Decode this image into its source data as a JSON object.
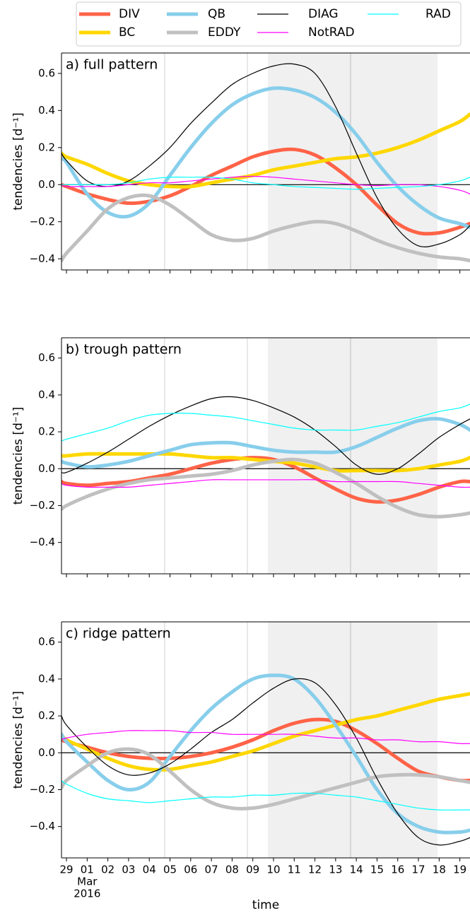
{
  "chart_data": [
    {
      "type": "line",
      "title": "a) full pattern",
      "y_label": "tendencies [d⁻¹]",
      "x": [
        -0.24,
        0,
        1,
        2,
        3,
        4,
        5,
        6,
        7,
        8,
        9,
        10,
        11,
        12,
        13,
        14,
        15,
        16,
        17,
        18,
        19,
        19.49
      ],
      "xlim": [
        -0.24,
        19.49
      ],
      "xticks": [
        0,
        1,
        2,
        3,
        4,
        5,
        6,
        7,
        8,
        9,
        10,
        11,
        12,
        13,
        14,
        15,
        16,
        17,
        18,
        19
      ],
      "ylim": [
        -0.46,
        0.71
      ],
      "yticks": [
        {
          "value": -0.4,
          "label": "−0.4"
        },
        {
          "value": -0.2,
          "label": "−0.2"
        },
        {
          "value": 0,
          "label": "0.0"
        },
        0.2,
        0.4,
        0.6
      ],
      "hlines": [
        0
      ],
      "shaded_span": [
        9.73,
        17.92
      ],
      "vlines": [
        4.74,
        8.74,
        13.72
      ],
      "series": [
        {
          "name": "DIV",
          "color": "#ff6347",
          "linewidth": 5,
          "values": [
            0.0,
            -0.01,
            -0.05,
            -0.08,
            -0.1,
            -0.09,
            -0.06,
            -0.01,
            0.05,
            0.1,
            0.15,
            0.18,
            0.19,
            0.16,
            0.09,
            0.0,
            -0.11,
            -0.21,
            -0.26,
            -0.26,
            -0.23,
            -0.21
          ]
        },
        {
          "name": "BC",
          "color": "#ffd700",
          "linewidth": 5,
          "values": [
            0.17,
            0.15,
            0.11,
            0.06,
            0.02,
            0.0,
            -0.01,
            -0.01,
            0.01,
            0.03,
            0.05,
            0.08,
            0.1,
            0.12,
            0.14,
            0.15,
            0.17,
            0.2,
            0.24,
            0.29,
            0.34,
            0.38
          ]
        },
        {
          "name": "QB",
          "color": "#87ceeb",
          "linewidth": 5,
          "values": [
            0.14,
            0.12,
            -0.05,
            -0.15,
            -0.17,
            -0.1,
            0.05,
            0.2,
            0.33,
            0.43,
            0.49,
            0.52,
            0.51,
            0.47,
            0.39,
            0.27,
            0.12,
            -0.01,
            -0.11,
            -0.18,
            -0.21,
            -0.23
          ]
        },
        {
          "name": "EDDY",
          "color": "#c0c0c0",
          "linewidth": 5,
          "values": [
            -0.41,
            -0.37,
            -0.25,
            -0.13,
            -0.07,
            -0.06,
            -0.11,
            -0.19,
            -0.27,
            -0.3,
            -0.29,
            -0.25,
            -0.22,
            -0.2,
            -0.21,
            -0.25,
            -0.3,
            -0.34,
            -0.37,
            -0.39,
            -0.4,
            -0.41
          ]
        },
        {
          "name": "DIAG",
          "color": "#000000",
          "linewidth": 1.2,
          "values": [
            0.17,
            0.13,
            0.02,
            -0.01,
            0.02,
            0.1,
            0.2,
            0.33,
            0.44,
            0.54,
            0.6,
            0.64,
            0.65,
            0.6,
            0.42,
            0.17,
            -0.07,
            -0.24,
            -0.33,
            -0.32,
            -0.27,
            -0.22
          ]
        },
        {
          "name": "NotRAD",
          "color": "#ff00ff",
          "linewidth": 1.2,
          "values": [
            0.0,
            -0.01,
            -0.01,
            -0.01,
            0.0,
            0.01,
            0.01,
            0.02,
            0.03,
            0.04,
            0.045,
            0.04,
            0.03,
            0.02,
            0.01,
            0.0,
            -0.005,
            0.0,
            0.0,
            -0.01,
            -0.03,
            -0.05
          ]
        },
        {
          "name": "RAD",
          "color": "#00ffff",
          "linewidth": 1.2,
          "values": [
            0.0,
            0.0,
            0.0,
            0.0,
            0.01,
            0.03,
            0.04,
            0.04,
            0.04,
            0.03,
            0.01,
            0.0,
            -0.01,
            -0.015,
            -0.02,
            -0.025,
            -0.02,
            -0.015,
            -0.01,
            0.0,
            0.02,
            0.04
          ]
        }
      ]
    },
    {
      "type": "line",
      "title": "b) trough pattern",
      "y_label": "tendencies [d⁻¹]",
      "x": [
        -0.24,
        0,
        1,
        2,
        3,
        4,
        5,
        6,
        7,
        8,
        9,
        10,
        11,
        12,
        13,
        14,
        15,
        16,
        17,
        18,
        19,
        19.49
      ],
      "xlim": [
        -0.24,
        19.49
      ],
      "xticks": [
        0,
        1,
        2,
        3,
        4,
        5,
        6,
        7,
        8,
        9,
        10,
        11,
        12,
        13,
        14,
        15,
        16,
        17,
        18,
        19
      ],
      "ylim": [
        -0.57,
        0.71
      ],
      "yticks": [
        {
          "value": -0.4,
          "label": "−0.4"
        },
        {
          "value": -0.2,
          "label": "−0.2"
        },
        {
          "value": 0,
          "label": "0.0"
        },
        0.2,
        0.4,
        0.6
      ],
      "hlines": [
        0
      ],
      "shaded_span": [
        9.73,
        17.92
      ],
      "vlines": [
        4.74,
        8.74,
        13.72
      ],
      "series": [
        {
          "name": "DIV",
          "color": "#ff6347",
          "linewidth": 5,
          "values": [
            -0.07,
            -0.08,
            -0.09,
            -0.08,
            -0.07,
            -0.05,
            -0.03,
            0.0,
            0.03,
            0.05,
            0.06,
            0.05,
            0.01,
            -0.05,
            -0.11,
            -0.16,
            -0.18,
            -0.17,
            -0.14,
            -0.1,
            -0.07,
            -0.07
          ]
        },
        {
          "name": "BC",
          "color": "#ffd700",
          "linewidth": 5,
          "values": [
            0.07,
            0.07,
            0.08,
            0.08,
            0.08,
            0.08,
            0.08,
            0.07,
            0.06,
            0.06,
            0.05,
            0.04,
            0.03,
            0.01,
            -0.01,
            -0.01,
            -0.01,
            -0.01,
            0.0,
            0.02,
            0.04,
            0.06
          ]
        },
        {
          "name": "QB",
          "color": "#87ceeb",
          "linewidth": 5,
          "values": [
            0.04,
            0.03,
            0.01,
            0.02,
            0.04,
            0.07,
            0.1,
            0.13,
            0.14,
            0.14,
            0.12,
            0.1,
            0.09,
            0.09,
            0.09,
            0.12,
            0.17,
            0.22,
            0.26,
            0.27,
            0.24,
            0.21
          ]
        },
        {
          "name": "EDDY",
          "color": "#c0c0c0",
          "linewidth": 5,
          "values": [
            -0.22,
            -0.2,
            -0.15,
            -0.11,
            -0.08,
            -0.06,
            -0.05,
            -0.04,
            -0.03,
            -0.01,
            0.02,
            0.04,
            0.05,
            0.03,
            -0.02,
            -0.08,
            -0.15,
            -0.21,
            -0.25,
            -0.26,
            -0.25,
            -0.24
          ]
        },
        {
          "name": "DIAG",
          "color": "#000000",
          "linewidth": 1.2,
          "values": [
            -0.02,
            -0.02,
            0.03,
            0.09,
            0.16,
            0.23,
            0.29,
            0.34,
            0.38,
            0.39,
            0.37,
            0.33,
            0.28,
            0.21,
            0.12,
            0.02,
            -0.03,
            0.0,
            0.08,
            0.17,
            0.24,
            0.27
          ]
        },
        {
          "name": "NotRAD",
          "color": "#ff00ff",
          "linewidth": 1.2,
          "values": [
            -0.08,
            -0.09,
            -0.1,
            -0.1,
            -0.1,
            -0.09,
            -0.08,
            -0.07,
            -0.06,
            -0.06,
            -0.06,
            -0.06,
            -0.06,
            -0.06,
            -0.07,
            -0.07,
            -0.07,
            -0.07,
            -0.08,
            -0.09,
            -0.1,
            -0.1
          ]
        },
        {
          "name": "RAD",
          "color": "#00ffff",
          "linewidth": 1.2,
          "values": [
            0.15,
            0.16,
            0.19,
            0.22,
            0.26,
            0.29,
            0.3,
            0.3,
            0.29,
            0.28,
            0.26,
            0.24,
            0.22,
            0.21,
            0.21,
            0.21,
            0.23,
            0.25,
            0.28,
            0.31,
            0.33,
            0.35
          ]
        }
      ]
    },
    {
      "type": "line",
      "title": "c) ridge pattern",
      "y_label": "tendencies [d⁻¹]",
      "x_label": "time",
      "x": [
        -0.24,
        0,
        1,
        2,
        3,
        4,
        5,
        6,
        7,
        8,
        9,
        10,
        11,
        12,
        13,
        14,
        15,
        16,
        17,
        18,
        19,
        19.49
      ],
      "xlim": [
        -0.24,
        19.49
      ],
      "xticks": [
        {
          "value": 0,
          "label": "29"
        },
        {
          "value": 1,
          "label": "01"
        },
        {
          "value": 2,
          "label": "02"
        },
        {
          "value": 3,
          "label": "03"
        },
        {
          "value": 4,
          "label": "04"
        },
        {
          "value": 5,
          "label": "05"
        },
        {
          "value": 6,
          "label": "06"
        },
        {
          "value": 7,
          "label": "07"
        },
        {
          "value": 8,
          "label": "08"
        },
        {
          "value": 9,
          "label": "09"
        },
        {
          "value": 10,
          "label": "10"
        },
        {
          "value": 11,
          "label": "11"
        },
        {
          "value": 12,
          "label": "12"
        },
        {
          "value": 13,
          "label": "13"
        },
        {
          "value": 14,
          "label": "14"
        },
        {
          "value": 15,
          "label": "15"
        },
        {
          "value": 16,
          "label": "16"
        },
        {
          "value": 17,
          "label": "17"
        },
        {
          "value": 18,
          "label": "18"
        },
        {
          "value": 19,
          "label": "19"
        }
      ],
      "x_month_label": "Mar",
      "x_year_label": "2016",
      "ylim": [
        -0.57,
        0.71
      ],
      "yticks": [
        {
          "value": -0.4,
          "label": "−0.4"
        },
        {
          "value": -0.2,
          "label": "−0.2"
        },
        {
          "value": 0,
          "label": "0.0"
        },
        0.2,
        0.4,
        0.6
      ],
      "hlines": [
        0
      ],
      "shaded_span": [
        9.73,
        17.92
      ],
      "vlines": [
        4.74,
        8.74,
        13.72
      ],
      "series": [
        {
          "name": "DIV",
          "color": "#ff6347",
          "linewidth": 5,
          "values": [
            0.07,
            0.06,
            0.03,
            0.0,
            -0.02,
            -0.03,
            -0.03,
            -0.02,
            0.0,
            0.03,
            0.07,
            0.12,
            0.16,
            0.18,
            0.17,
            0.12,
            0.05,
            -0.03,
            -0.1,
            -0.13,
            -0.15,
            -0.15
          ]
        },
        {
          "name": "BC",
          "color": "#ffd700",
          "linewidth": 5,
          "values": [
            0.1,
            0.07,
            0.02,
            -0.03,
            -0.07,
            -0.09,
            -0.09,
            -0.07,
            -0.05,
            -0.02,
            0.01,
            0.05,
            0.09,
            0.12,
            0.15,
            0.18,
            0.2,
            0.23,
            0.26,
            0.29,
            0.31,
            0.32
          ]
        },
        {
          "name": "QB",
          "color": "#87ceeb",
          "linewidth": 5,
          "values": [
            0.1,
            0.06,
            -0.05,
            -0.15,
            -0.2,
            -0.16,
            -0.02,
            0.12,
            0.24,
            0.33,
            0.4,
            0.42,
            0.4,
            0.3,
            0.15,
            -0.02,
            -0.2,
            -0.33,
            -0.4,
            -0.43,
            -0.43,
            -0.42
          ]
        },
        {
          "name": "EDDY",
          "color": "#c0c0c0",
          "linewidth": 5,
          "values": [
            -0.19,
            -0.15,
            -0.07,
            0.0,
            0.02,
            -0.01,
            -0.1,
            -0.2,
            -0.27,
            -0.3,
            -0.3,
            -0.28,
            -0.25,
            -0.22,
            -0.19,
            -0.16,
            -0.13,
            -0.12,
            -0.12,
            -0.13,
            -0.15,
            -0.16
          ]
        },
        {
          "name": "DIAG",
          "color": "#000000",
          "linewidth": 1.2,
          "values": [
            0.2,
            0.15,
            0.03,
            -0.07,
            -0.12,
            -0.11,
            -0.06,
            0.02,
            0.11,
            0.18,
            0.27,
            0.35,
            0.4,
            0.38,
            0.26,
            0.08,
            -0.14,
            -0.33,
            -0.46,
            -0.5,
            -0.48,
            -0.46
          ]
        },
        {
          "name": "NotRAD",
          "color": "#ff00ff",
          "linewidth": 1.2,
          "values": [
            0.07,
            0.08,
            0.1,
            0.11,
            0.12,
            0.12,
            0.12,
            0.11,
            0.11,
            0.1,
            0.1,
            0.1,
            0.1,
            0.09,
            0.08,
            0.08,
            0.07,
            0.07,
            0.06,
            0.06,
            0.05,
            0.05
          ]
        },
        {
          "name": "RAD",
          "color": "#00ffff",
          "linewidth": 1.2,
          "values": [
            -0.15,
            -0.17,
            -0.22,
            -0.25,
            -0.26,
            -0.27,
            -0.26,
            -0.25,
            -0.24,
            -0.24,
            -0.23,
            -0.23,
            -0.22,
            -0.22,
            -0.23,
            -0.24,
            -0.26,
            -0.28,
            -0.3,
            -0.31,
            -0.31,
            -0.31
          ]
        }
      ]
    }
  ]
}
